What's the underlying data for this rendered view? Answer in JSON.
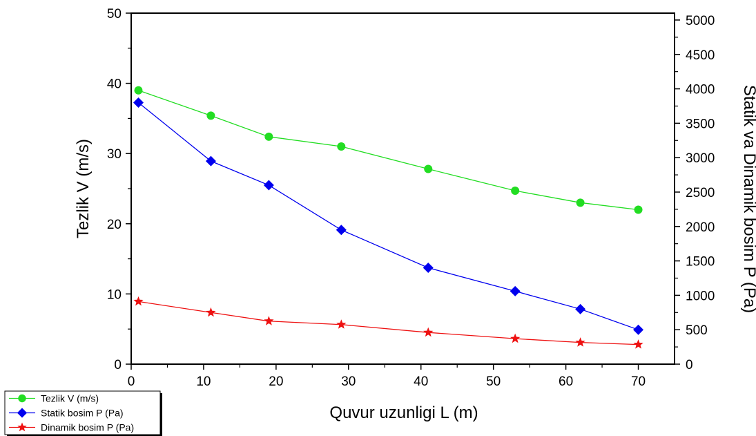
{
  "chart_data": {
    "type": "line",
    "xlabel": "Quvur uzunligi L (m)",
    "ylabel_left": "Tezlik V (m/s)",
    "ylabel_right": "Statik va Dinamik bosim P (Pa)",
    "xlim": [
      0,
      75
    ],
    "ylim_left": [
      0,
      50
    ],
    "ylim_right": [
      0,
      5100
    ],
    "x_ticks": [
      "0",
      "10",
      "20",
      "30",
      "40",
      "50",
      "60",
      "70"
    ],
    "y_left_ticks": [
      "0",
      "10",
      "20",
      "30",
      "40",
      "50"
    ],
    "y_right_ticks": [
      "0",
      "500",
      "1000",
      "1500",
      "2000",
      "2500",
      "3000",
      "3500",
      "4000",
      "4500",
      "5000"
    ],
    "x": [
      1,
      11,
      19,
      29,
      41,
      53,
      62,
      70
    ],
    "grid": false,
    "legend_position": "bottom-left",
    "series": [
      {
        "name": "Tezlik V (m/s)",
        "axis": "left",
        "marker": "circle",
        "color": "#22dd22",
        "values": [
          39,
          35.4,
          32.4,
          31,
          27.8,
          24.7,
          23,
          22
        ]
      },
      {
        "name": "Statik bosim P (Pa)",
        "axis": "right",
        "marker": "diamond",
        "color": "#0000ee",
        "values": [
          3800,
          2950,
          2600,
          1950,
          1400,
          1060,
          800,
          500
        ]
      },
      {
        "name": "Dinamik bosim P (Pa)",
        "axis": "right",
        "marker": "star",
        "color": "#ee1111",
        "values": [
          910,
          750,
          625,
          575,
          460,
          370,
          315,
          285
        ]
      }
    ]
  }
}
